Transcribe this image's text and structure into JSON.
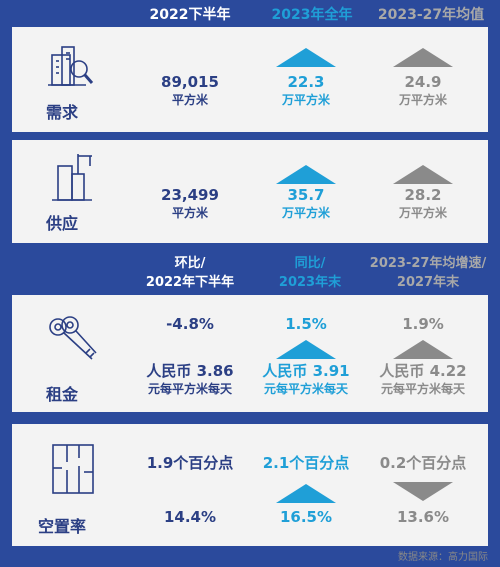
{
  "header1": {
    "col1": "2022下半年",
    "col2": "2023年全年",
    "col3": "2023-27年均值"
  },
  "demand": {
    "label": "需求",
    "col1_value": "89,015",
    "col1_unit": "平方米",
    "col2_value": "22.3",
    "col2_unit": "万平方米",
    "col3_value": "24.9",
    "col3_unit": "万平方米"
  },
  "supply": {
    "label": "供应",
    "col1_value": "23,499",
    "col1_unit": "平方米",
    "col2_value": "35.7",
    "col2_unit": "万平方米",
    "col3_value": "28.2",
    "col3_unit": "万平方米"
  },
  "header2": {
    "col1_line1": "环比/",
    "col1_line2": "2022年下半年",
    "col2_line1": "同比/",
    "col2_line2": "2023年末",
    "col3_line1": "2023-27年均增速/",
    "col3_line2": "2027年末"
  },
  "rent": {
    "label": "租金",
    "col1_change": "-4.8%",
    "col1_value": "人民币 3.86",
    "col1_unit": "元每平方米每天",
    "col2_change": "1.5%",
    "col2_value": "人民币 3.91",
    "col2_unit": "元每平方米每天",
    "col3_change": "1.9%",
    "col3_value": "人民币 4.22",
    "col3_unit": "元每平方米每天"
  },
  "vacancy": {
    "label": "空置率",
    "col1_change": "1.9个百分点",
    "col1_value": "14.4%",
    "col2_change": "2.1个百分点",
    "col2_value": "16.5%",
    "col3_change": "0.2个百分点",
    "col3_value": "13.6%"
  },
  "source": "数据来源：高力国际",
  "colors": {
    "background": "#2b4a9c",
    "panel": "#f3f3f3",
    "navy_text": "#2b3f84",
    "accent_blue": "#1f9fd7",
    "gray": "#8a8a8a"
  },
  "icons": {
    "demand": "building-magnifier-icon",
    "supply": "building-crane-icon",
    "rent": "keys-icon",
    "vacancy": "floorplan-icon",
    "up": "triangle-up-icon",
    "down": "triangle-down-icon"
  }
}
